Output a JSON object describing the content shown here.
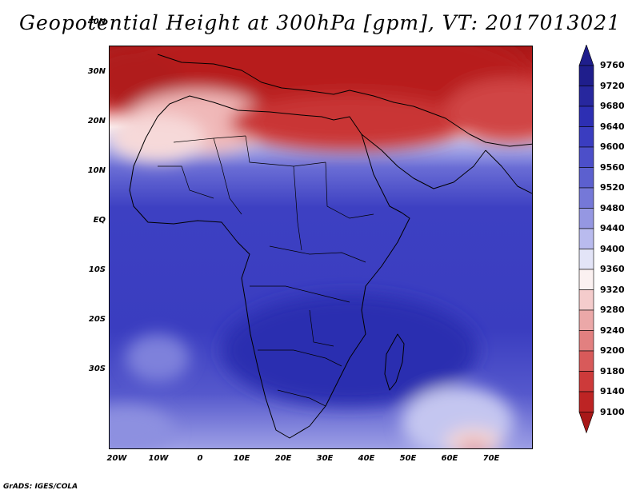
{
  "title": "Geopotential Height at 300hPa [gpm], VT: 2017013021",
  "credit": "GrADS: IGES/COLA",
  "map": {
    "lon_ticks": [
      "20W",
      "10W",
      "0",
      "10E",
      "20E",
      "30E",
      "40E",
      "50E",
      "60E",
      "70E"
    ],
    "lat_ticks": [
      "40N",
      "30N",
      "20N",
      "10N",
      "EQ",
      "10S",
      "20S",
      "30S"
    ]
  },
  "colorbar": {
    "levels": [
      "9760",
      "9720",
      "9680",
      "9640",
      "9600",
      "9560",
      "9520",
      "9480",
      "9440",
      "9400",
      "9360",
      "9320",
      "9280",
      "9240",
      "9200",
      "9180",
      "9140",
      "9100"
    ],
    "colors": [
      "#1f1e8c",
      "#27279e",
      "#2d2fb3",
      "#3a3dc0",
      "#4c4fc9",
      "#5c60cf",
      "#7578d8",
      "#9597e2",
      "#b9bbee",
      "#e3e4f7",
      "#fbf1f1",
      "#f4cccc",
      "#eba8a8",
      "#e28080",
      "#d85a5a",
      "#cd3a3a",
      "#bd2424",
      "#a81818"
    ]
  }
}
